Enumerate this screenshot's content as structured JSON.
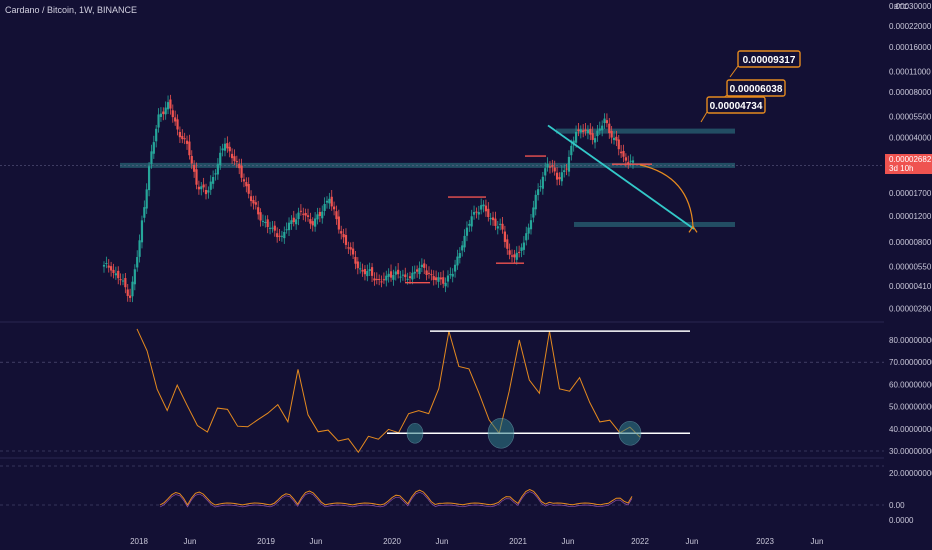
{
  "header": {
    "title": "Cardano / Bitcoin, 1W, BINANCE",
    "unit": "BTC"
  },
  "colors": {
    "background": "#131034",
    "candle_up": "#26a69a",
    "candle_down": "#ef5350",
    "zone": "#2f7f8a",
    "trendline": "#33c9c9",
    "rsi_line": "#e58a1f",
    "callout_border": "#e58a1f",
    "price_tag": "#ef5350",
    "level_line": "#ffffff"
  },
  "chart_data": [
    {
      "type": "candlestick",
      "title": "Cardano / Bitcoin, 1W, BINANCE",
      "y_scale": "log",
      "y_ticks": [
        "0.00030000",
        "0.00022000",
        "0.00016000",
        "0.00011000",
        "0.00008000",
        "0.00005500",
        "0.00004000",
        "0.00002500",
        "0.00001700",
        "0.00001200",
        "0.00000800",
        "0.00000550",
        "0.00000410",
        "0.00000290"
      ],
      "x_ticks": [
        "2018",
        "Jun",
        "2019",
        "Jun",
        "2020",
        "Jun",
        "2021",
        "Jun",
        "2022",
        "Jun",
        "2023",
        "Jun"
      ],
      "closes_approx": [
        5.5e-06,
        4.5e-06,
        3.5e-06,
        8e-06,
        2.5e-05,
        5.5e-05,
        6.5e-05,
        4.5e-05,
        3.5e-05,
        2e-05,
        1.7e-05,
        2.4e-05,
        3.8e-05,
        2.8e-05,
        2.1e-05,
        1.4e-05,
        1.1e-05,
        9.5e-06,
        8.5e-06,
        1.1e-05,
        1.25e-05,
        1.1e-05,
        1.2e-05,
        1.65e-05,
        1e-05,
        7.5e-06,
        5.5e-06,
        5e-06,
        4.5e-06,
        4.5e-06,
        5e-06,
        4.5e-06,
        5e-06,
        5.5e-06,
        4.5e-06,
        4.5e-06,
        5e-06,
        8e-06,
        1.2e-05,
        1.4e-05,
        1.15e-05,
        1e-05,
        6.5e-06,
        6.5e-06,
        1e-05,
        1.8e-05,
        2.7e-05,
        2.2e-05,
        2.5e-05,
        4.6e-05,
        4.4e-05,
        4e-05,
        5.2e-05,
        3.8e-05,
        2.9e-05,
        2.65e-05
      ],
      "current_price": "0.00002682",
      "countdown": "3d 10h",
      "annotations": [
        "0.00009317",
        "0.00006038",
        "0.00004734"
      ]
    },
    {
      "type": "line",
      "title": "",
      "y_ticks": [
        "80.00000000",
        "70.00000000",
        "60.00000000",
        "50.00000000",
        "40.00000000",
        "30.00000000",
        "20.00000000"
      ],
      "values_approx": [
        85,
        75,
        58,
        48,
        60,
        50,
        42,
        38,
        50,
        48,
        42,
        40,
        45,
        46,
        52,
        42,
        68,
        45,
        40,
        38,
        36,
        34,
        31,
        35,
        37,
        38,
        40,
        45,
        50,
        45,
        60,
        82,
        70,
        65,
        58,
        42,
        40,
        55,
        82,
        60,
        58,
        82,
        60,
        55,
        65,
        50,
        45,
        42,
        40,
        39,
        38
      ],
      "levels": [
        84,
        38
      ]
    },
    {
      "type": "line",
      "title": "",
      "y_ticks": [
        "0.00",
        "0.0000"
      ]
    }
  ]
}
